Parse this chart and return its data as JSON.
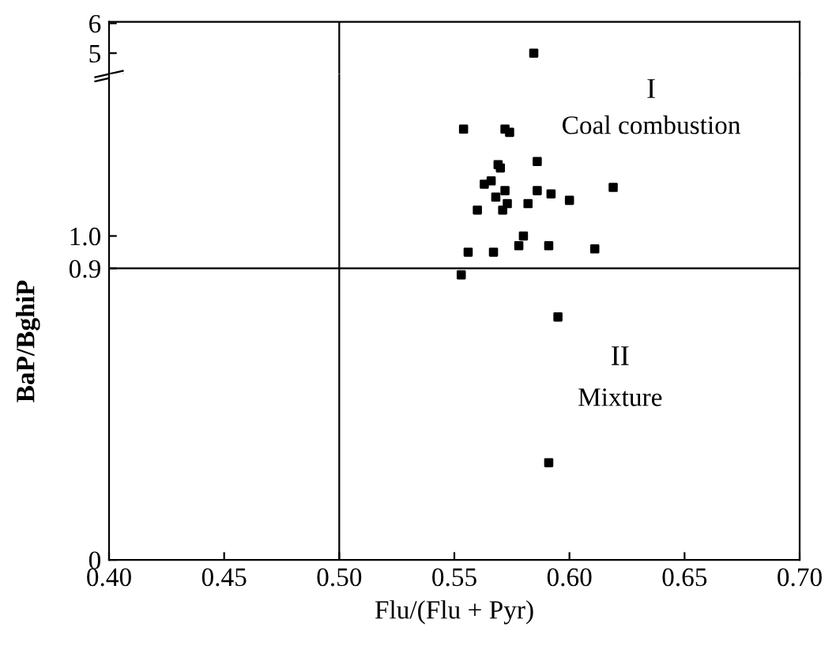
{
  "chart_data": [
    {
      "type": "scatter",
      "xlim": [
        0.4,
        0.7
      ],
      "ylim": [
        4.3,
        6.05
      ],
      "yticks": [
        5,
        6
      ],
      "tick_labels": "y",
      "marker": "square",
      "grid": false,
      "series": [
        {
          "color": "#000000",
          "x": [
            0.5845
          ],
          "values": [
            5.0
          ]
        }
      ],
      "ref_lines": [
        {
          "axis": "x",
          "value": 0.5
        }
      ]
    },
    {
      "type": "scatter",
      "xlim": [
        0.4,
        0.7
      ],
      "ylim": [
        0,
        1.5
      ],
      "xticks": [
        {
          "value": 0.4,
          "label": "0.40"
        },
        {
          "value": 0.45,
          "label": "0.45"
        },
        {
          "value": 0.5,
          "label": "0.50"
        },
        {
          "value": 0.55,
          "label": "0.55"
        },
        {
          "value": 0.6,
          "label": "0.60"
        },
        {
          "value": 0.65,
          "label": "0.65"
        },
        {
          "value": 0.7,
          "label": "0.70"
        }
      ],
      "yticks": [
        0,
        {
          "value": 0.9,
          "label": "0.9"
        },
        {
          "value": 1.0,
          "label": "1.0"
        }
      ],
      "marker": "square",
      "grid": false,
      "xlabel": "Flu/(Flu + Pyr)",
      "ylabel": "BaP/BghiP",
      "series": [
        {
          "color": "#000000",
          "x": [
            0.554,
            0.572,
            0.574,
            0.569,
            0.57,
            0.586,
            0.563,
            0.566,
            0.572,
            0.568,
            0.573,
            0.571,
            0.56,
            0.582,
            0.586,
            0.592,
            0.6,
            0.619,
            0.58,
            0.578,
            0.591,
            0.611,
            0.556,
            0.567,
            0.553,
            0.595,
            0.591
          ],
          "values": [
            1.33,
            1.33,
            1.32,
            1.22,
            1.21,
            1.23,
            1.16,
            1.17,
            1.14,
            1.12,
            1.1,
            1.08,
            1.08,
            1.1,
            1.14,
            1.13,
            1.11,
            1.15,
            1.0,
            0.97,
            0.97,
            0.96,
            0.95,
            0.95,
            0.88,
            0.75,
            0.3
          ]
        }
      ],
      "ref_lines": [
        {
          "axis": "x",
          "value": 0.5
        },
        {
          "axis": "y",
          "value": 0.9
        }
      ],
      "annotations": [
        "I",
        "Coal combustion",
        "II",
        "Mixture"
      ]
    }
  ]
}
